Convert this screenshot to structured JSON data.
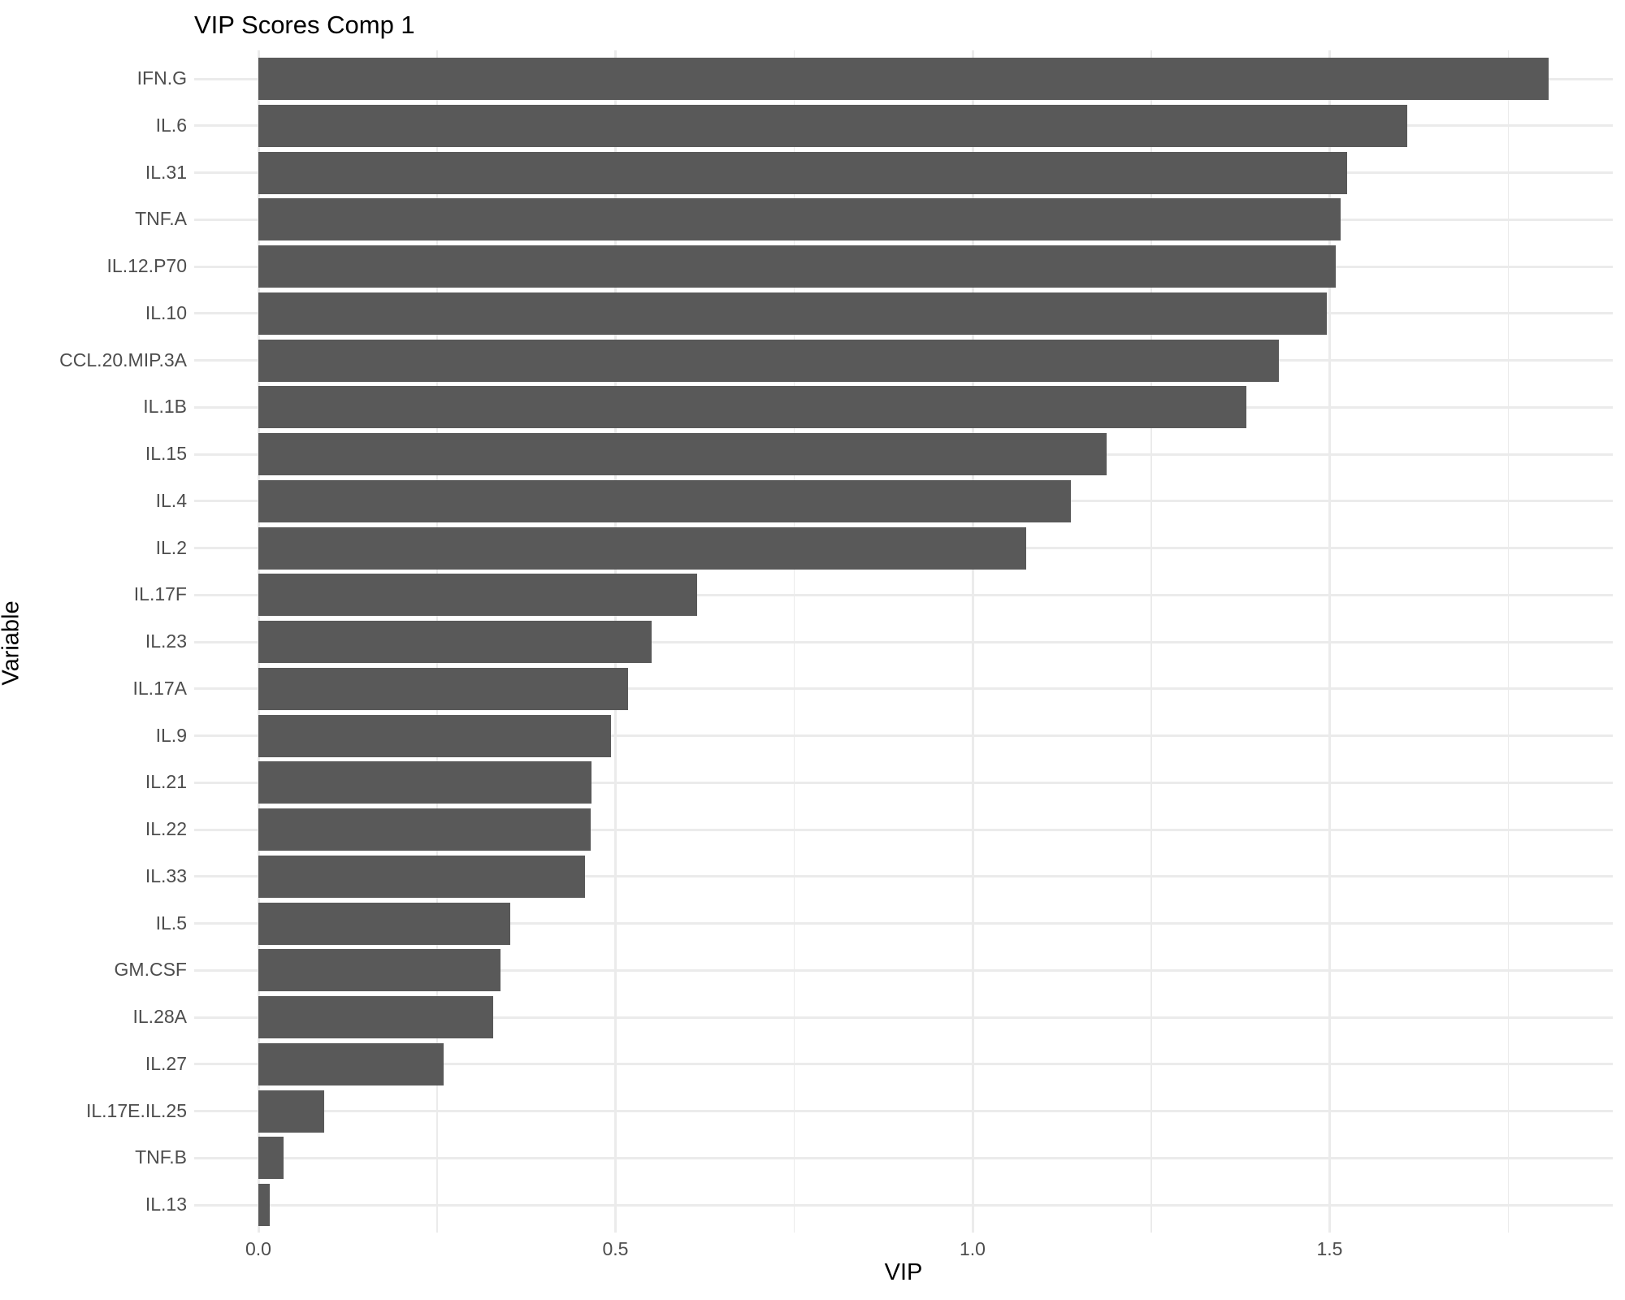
{
  "chart_data": {
    "type": "bar",
    "orientation": "horizontal",
    "title": "VIP Scores Comp 1",
    "xlabel": "VIP",
    "ylabel": "Variable",
    "categories": [
      "IFN.G",
      "IL.6",
      "IL.31",
      "TNF.A",
      "IL.12.P70",
      "IL.10",
      "CCL.20.MIP.3A",
      "IL.1B",
      "IL.15",
      "IL.4",
      "IL.2",
      "IL.17F",
      "IL.23",
      "IL.17A",
      "IL.9",
      "IL.21",
      "IL.22",
      "IL.33",
      "IL.5",
      "GM.CSF",
      "IL.28A",
      "IL.27",
      "IL.17E.IL.25",
      "TNF.B",
      "IL.13"
    ],
    "values": [
      1.807,
      1.609,
      1.524,
      1.515,
      1.508,
      1.496,
      1.429,
      1.383,
      1.188,
      1.138,
      1.075,
      0.614,
      0.551,
      0.518,
      0.494,
      0.466,
      0.465,
      0.457,
      0.353,
      0.339,
      0.329,
      0.259,
      0.092,
      0.035,
      0.016
    ],
    "x_ticks": [
      0.0,
      0.5,
      1.0,
      1.5
    ],
    "x_tick_labels": [
      "0.0",
      "0.5",
      "1.0",
      "1.5"
    ],
    "x_minor_gridlines": [
      0.25,
      0.75,
      1.25,
      1.75
    ],
    "xlim": [
      -0.09,
      1.897
    ],
    "grid": "on",
    "legend": "none",
    "bar_color": "#595959",
    "grid_color": "#EBEBEB",
    "axis_text_color": "#4D4D4D",
    "title_color": "#000000",
    "background_color": "#FFFFFF"
  }
}
